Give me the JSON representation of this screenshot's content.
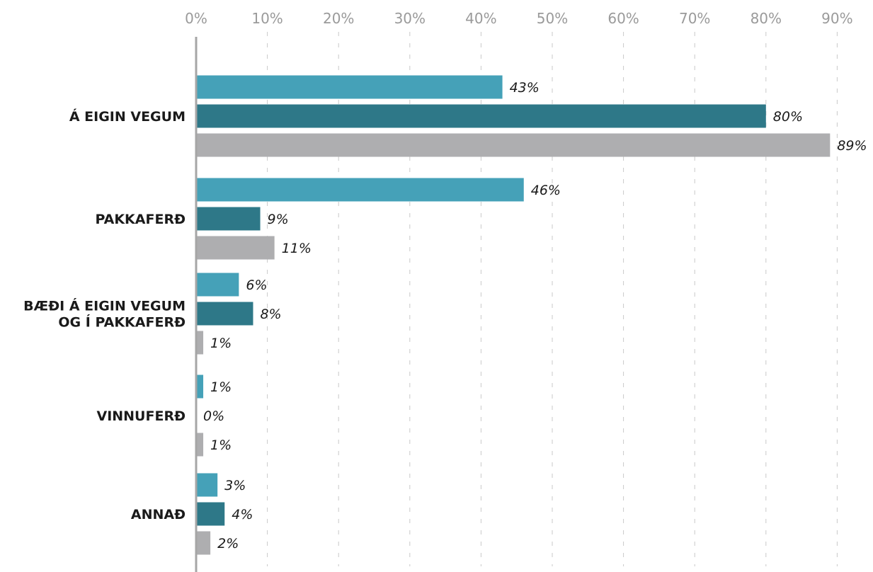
{
  "chart_data": {
    "type": "bar",
    "orientation": "horizontal",
    "xlim": [
      0,
      90
    ],
    "x_ticks": [
      "0%",
      "10%",
      "20%",
      "30%",
      "40%",
      "50%",
      "60%",
      "70%",
      "80%",
      "90%"
    ],
    "grid": true,
    "legend": "none",
    "categories": [
      [
        "Á EIGIN VEGUM"
      ],
      [
        "PAKKAFERÐ"
      ],
      [
        "BÆÐI Á EIGIN VEGUM",
        "OG Í PAKKAFERÐ"
      ],
      [
        "VINNUFERÐ"
      ],
      [
        "ANNAÐ"
      ]
    ],
    "series": [
      {
        "color": "#45a1b8",
        "values": [
          43,
          46,
          6,
          1,
          3
        ],
        "labels": [
          "43%",
          "46%",
          "6%",
          "1%",
          "3%"
        ]
      },
      {
        "color": "#2e7888",
        "values": [
          80,
          9,
          8,
          0,
          4
        ],
        "labels": [
          "80%",
          "9%",
          "8%",
          "0%",
          "4%"
        ]
      },
      {
        "color": "#aeaeb0",
        "values": [
          89,
          11,
          1,
          1,
          2
        ],
        "labels": [
          "89%",
          "11%",
          "1%",
          "1%",
          "2%"
        ]
      }
    ]
  }
}
